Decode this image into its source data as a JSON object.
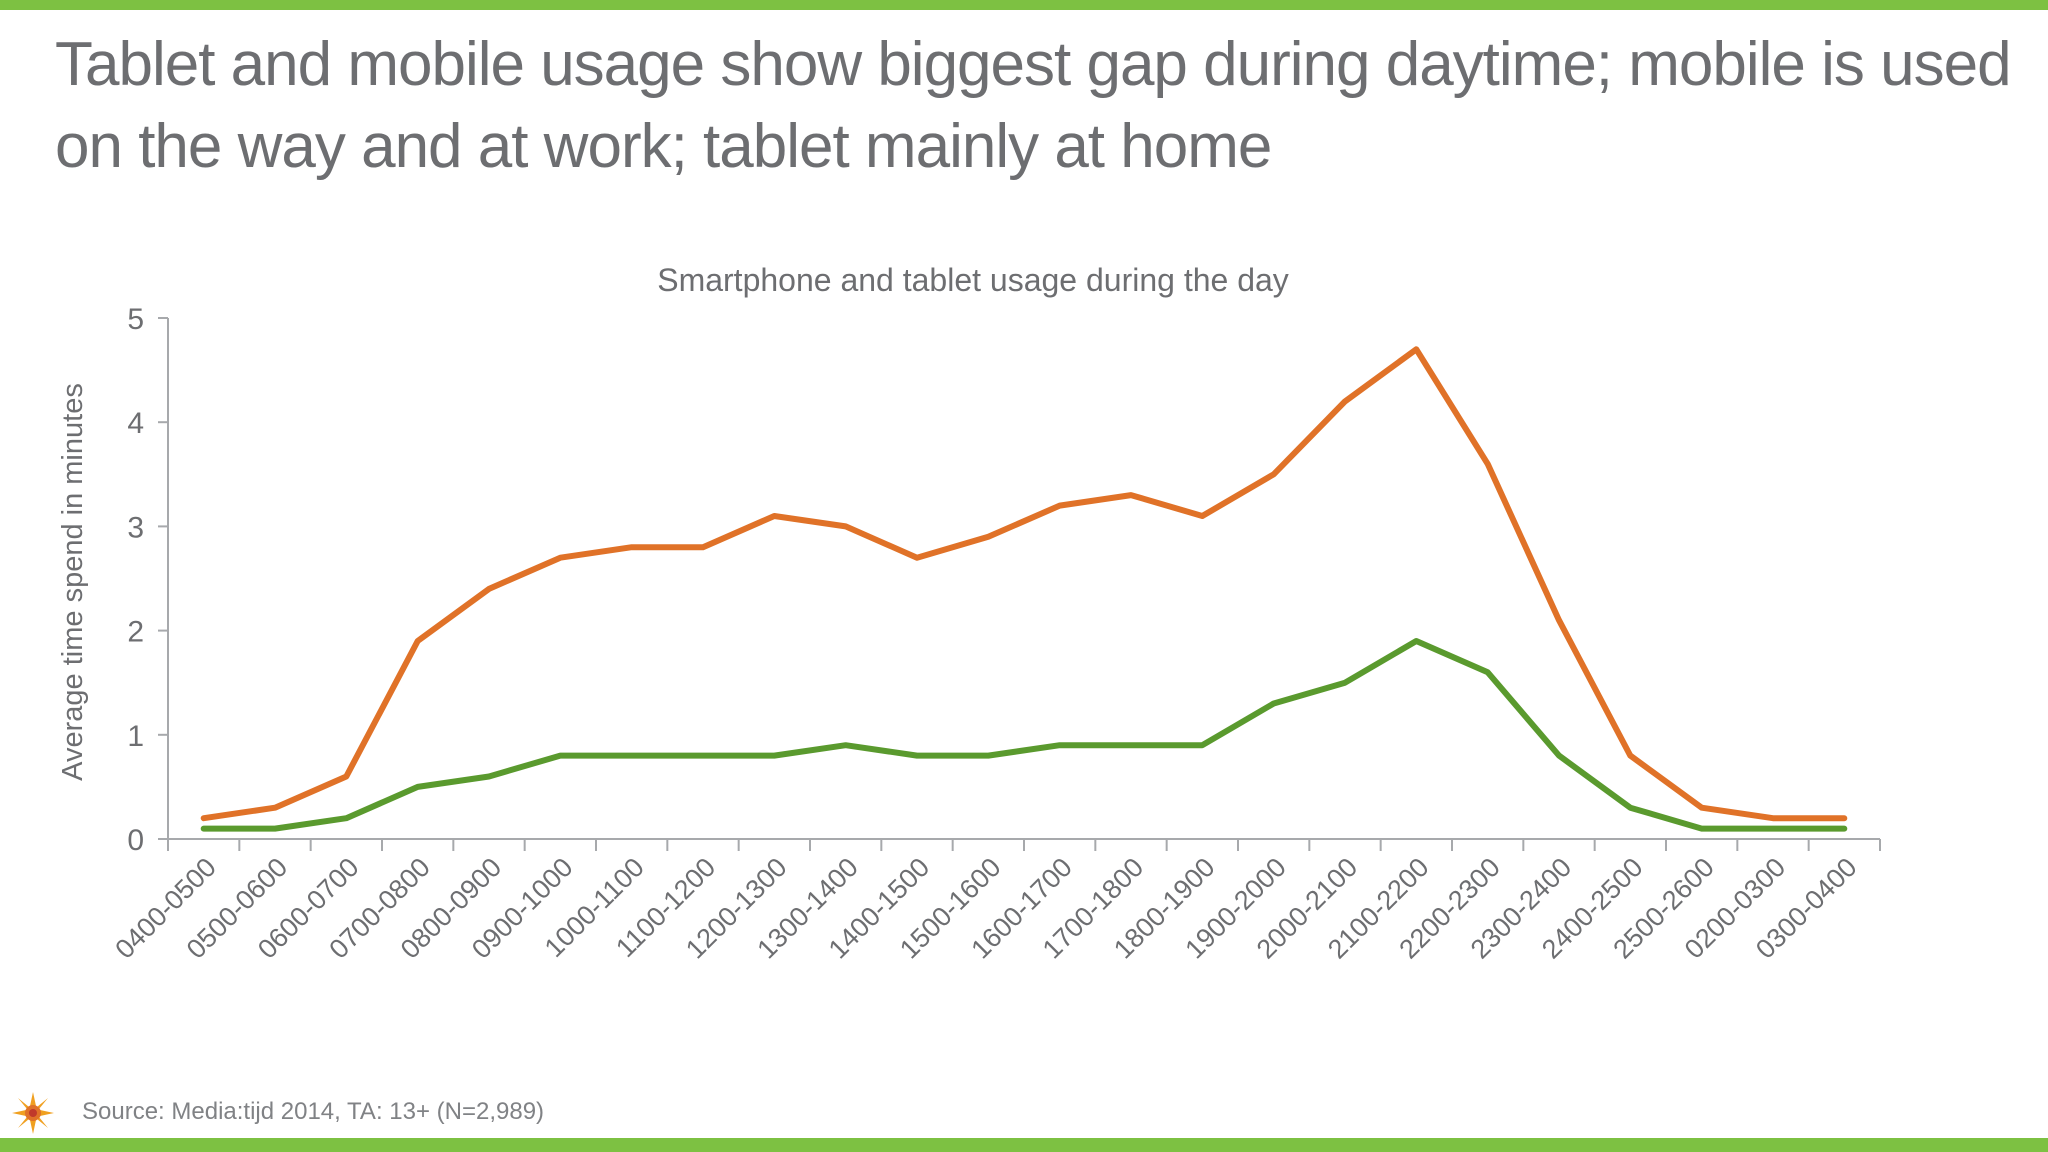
{
  "slide": {
    "headline": "Tablet and mobile usage show biggest gap during daytime; mobile is used on the way and at work; tablet mainly at home",
    "source": "Source: Media:tijd 2014, TA: 13+ (N=2,989)",
    "brand_color": "#7dc142",
    "logo_icon": "sun-burst-icon"
  },
  "chart_data": {
    "type": "line",
    "title": "Smartphone and tablet usage during the day",
    "xlabel": "",
    "ylabel": "Average time spend in minutes",
    "ylim": [
      0,
      5
    ],
    "yticks": [
      "0",
      "1",
      "2",
      "3",
      "4",
      "5"
    ],
    "grid": false,
    "legend": "none",
    "categories": [
      "0400-0500",
      "0500-0600",
      "0600-0700",
      "0700-0800",
      "0800-0900",
      "0900-1000",
      "1000-1100",
      "1100-1200",
      "1200-1300",
      "1300-1400",
      "1400-1500",
      "1500-1600",
      "1600-1700",
      "1700-1800",
      "1800-1900",
      "1900-2000",
      "2000-2100",
      "2100-2200",
      "2200-2300",
      "2300-2400",
      "2400-2500",
      "2500-2600",
      "0200-0300",
      "0300-0400"
    ],
    "series": [
      {
        "color": "#e07228",
        "values": [
          0.2,
          0.3,
          0.6,
          1.9,
          2.4,
          2.7,
          2.8,
          2.8,
          3.1,
          3.0,
          2.7,
          2.9,
          3.2,
          3.3,
          3.1,
          3.5,
          4.2,
          4.7,
          3.6,
          2.1,
          0.8,
          0.3,
          0.2,
          0.2
        ]
      },
      {
        "color": "#5a9a2e",
        "values": [
          0.1,
          0.1,
          0.2,
          0.5,
          0.6,
          0.8,
          0.8,
          0.8,
          0.8,
          0.9,
          0.8,
          0.8,
          0.9,
          0.9,
          0.9,
          1.3,
          1.5,
          1.9,
          1.6,
          0.8,
          0.3,
          0.1,
          0.1,
          0.1
        ]
      }
    ]
  }
}
